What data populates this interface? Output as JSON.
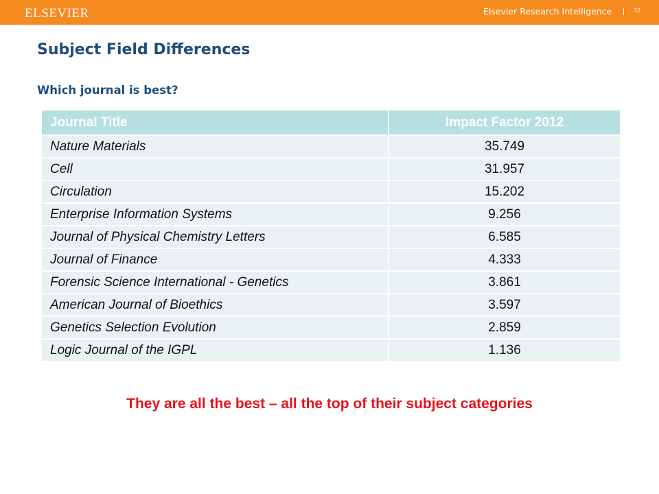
{
  "header": {
    "brand": "ELSEVIER",
    "product": "Elsevier Research Intelligence",
    "page_number": "32",
    "accent_color": "#f58a1f"
  },
  "slide": {
    "title": "Subject Field Differences",
    "subtitle": "Which journal is best?",
    "conclusion": "They are all the best – all the top of their subject categories"
  },
  "table": {
    "columns": [
      "Journal Title",
      "Impact Factor 2012"
    ],
    "rows": [
      {
        "title": "Nature Materials",
        "impact": "35.749"
      },
      {
        "title": "Cell",
        "impact": "31.957"
      },
      {
        "title": "Circulation",
        "impact": "15.202"
      },
      {
        "title": "Enterprise Information Systems",
        "impact": "9.256"
      },
      {
        "title": "Journal of Physical Chemistry Letters",
        "impact": "6.585"
      },
      {
        "title": "Journal of Finance",
        "impact": "4.333"
      },
      {
        "title": "Forensic Science International - Genetics",
        "impact": "3.861"
      },
      {
        "title": "American Journal of Bioethics",
        "impact": "3.597"
      },
      {
        "title": "Genetics Selection Evolution",
        "impact": "2.859"
      },
      {
        "title": "Logic Journal of the IGPL",
        "impact": "1.136"
      }
    ]
  }
}
